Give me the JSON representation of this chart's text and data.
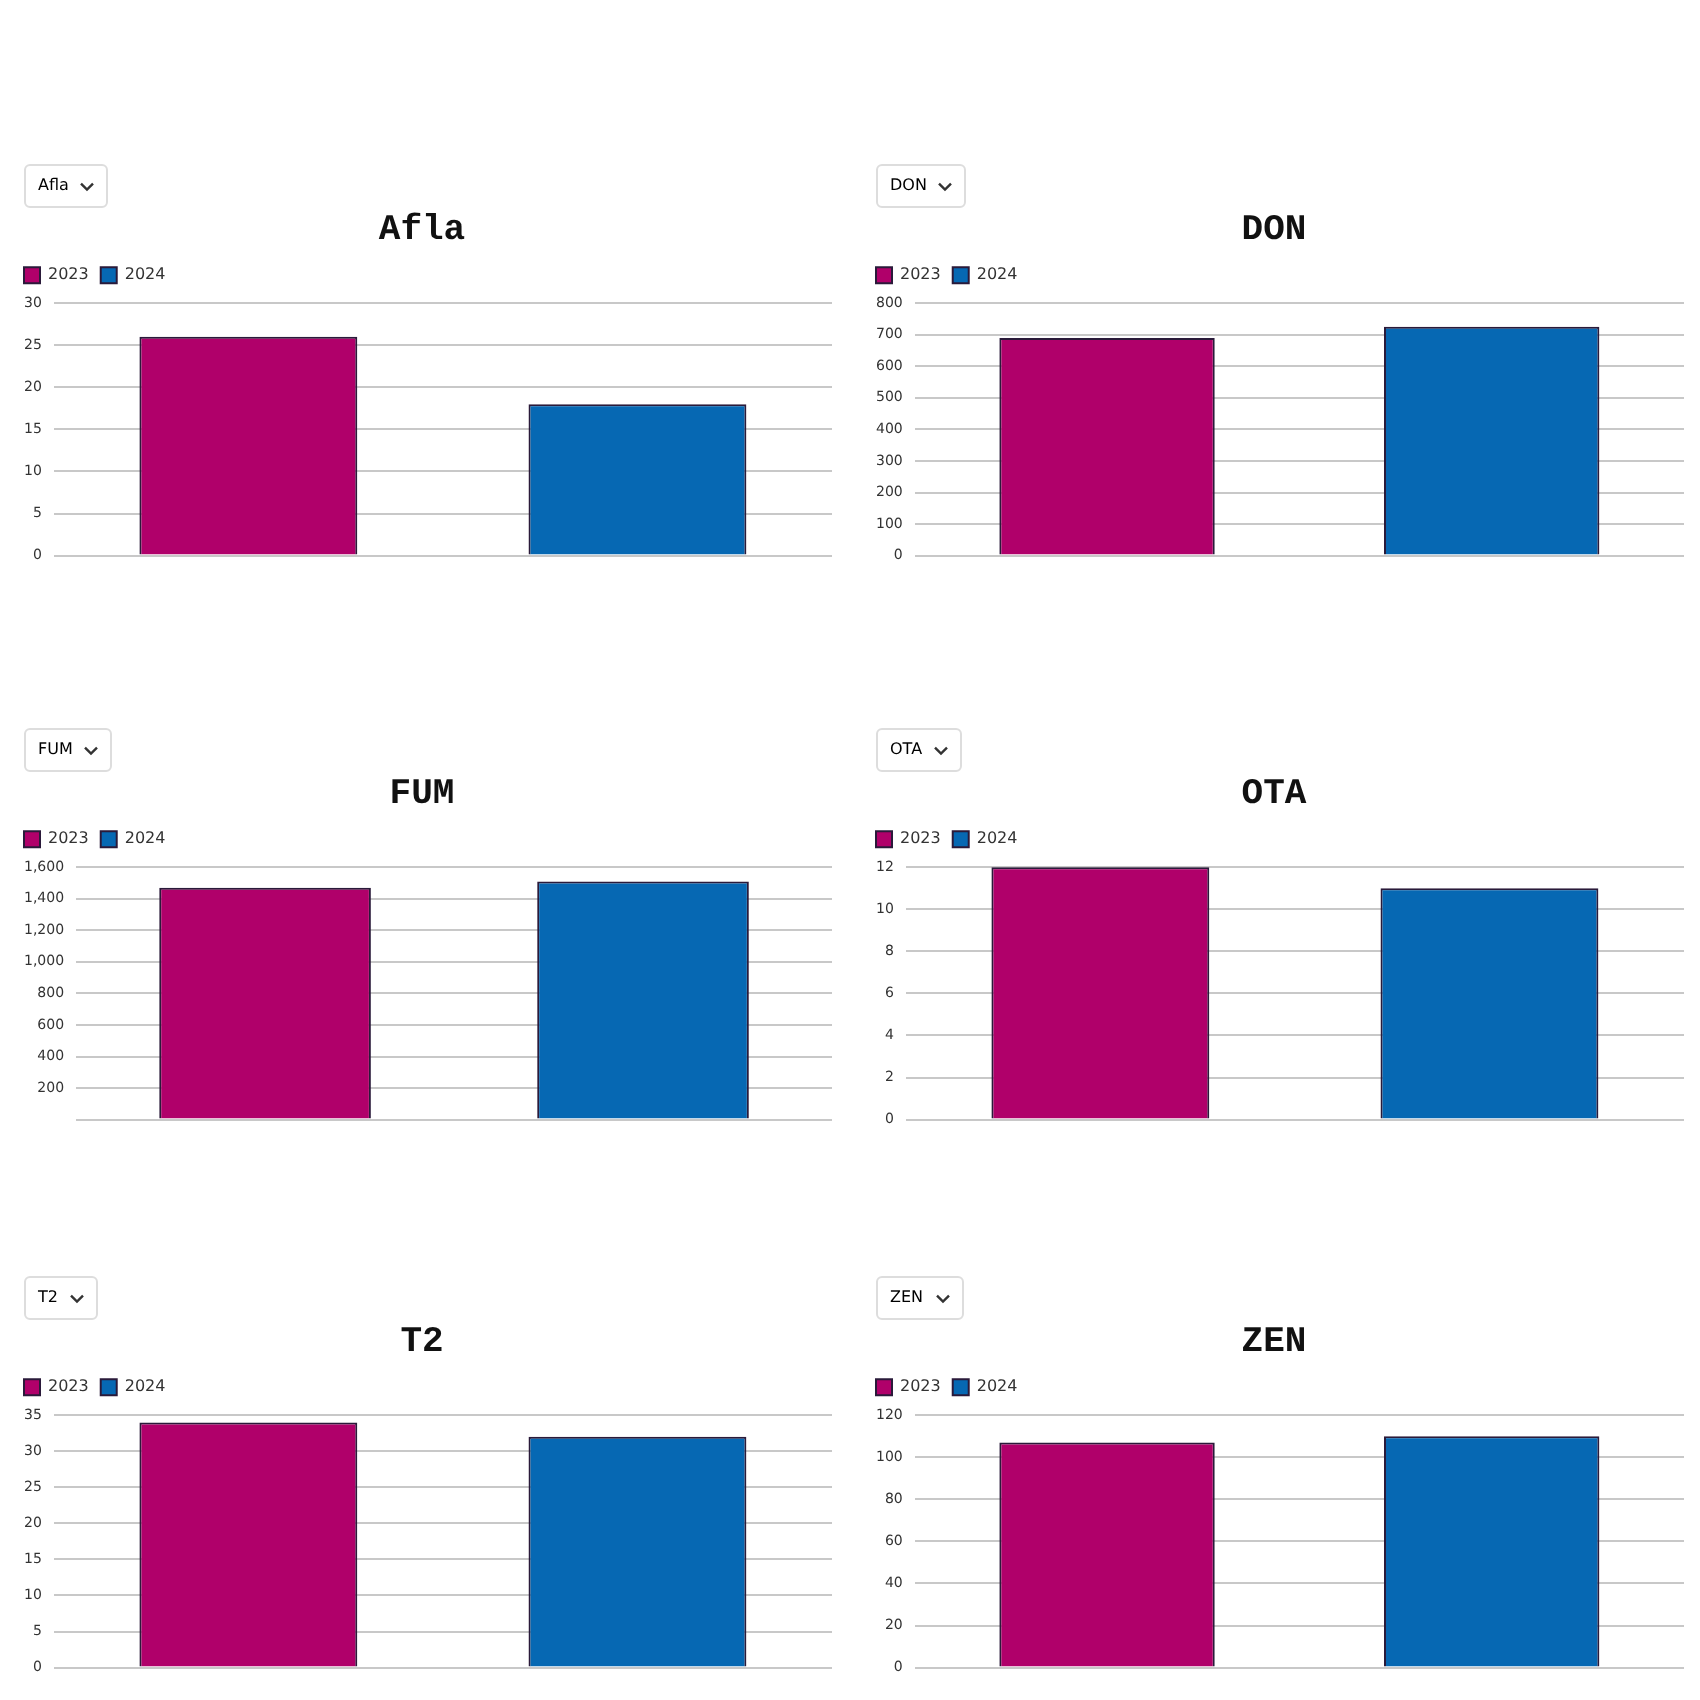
{
  "chart_data": [
    {
      "type": "bar",
      "title": "Afla",
      "categories": [
        null
      ],
      "series": [
        {
          "name": "2023",
          "color": "#b0006a",
          "values": [
            26
          ]
        },
        {
          "name": "2024",
          "color": "#0668b3",
          "values": [
            18
          ]
        }
      ],
      "ylim": [
        0,
        30
      ],
      "yticks": [
        0,
        5,
        10,
        15,
        20,
        25,
        30
      ],
      "grid": "y",
      "legend": "top left"
    },
    {
      "type": "bar",
      "title": "DON",
      "categories": [
        null
      ],
      "series": [
        {
          "name": "2023",
          "color": "#b0006a",
          "values": [
            690
          ]
        },
        {
          "name": "2024",
          "color": "#0668b3",
          "values": [
            725
          ]
        }
      ],
      "ylim": [
        0,
        800
      ],
      "yticks": [
        0,
        100,
        200,
        300,
        400,
        500,
        600,
        700,
        800
      ],
      "grid": "y",
      "legend": "top left"
    },
    {
      "type": "bar",
      "title": "FUM",
      "categories": [
        null
      ],
      "series": [
        {
          "name": "2023",
          "color": "#b0006a",
          "values": [
            1470
          ]
        },
        {
          "name": "2024",
          "color": "#0668b3",
          "values": [
            1510
          ]
        }
      ],
      "ylim": [
        0,
        1600
      ],
      "yticks": [
        {
          "value": 0,
          "label": null
        },
        {
          "value": 200,
          "label": "200"
        },
        {
          "value": 400,
          "label": "400"
        },
        {
          "value": 600,
          "label": "600"
        },
        {
          "value": 800,
          "label": "800"
        },
        {
          "value": 1000,
          "label": "1,000"
        },
        {
          "value": 1200,
          "label": "1,200"
        },
        {
          "value": 1400,
          "label": "1,400"
        },
        {
          "value": 1600,
          "label": "1,600"
        }
      ],
      "grid": "y",
      "legend": "top left"
    },
    {
      "type": "bar",
      "title": "OTA",
      "categories": [
        null
      ],
      "series": [
        {
          "name": "2023",
          "color": "#b0006a",
          "values": [
            12
          ]
        },
        {
          "name": "2024",
          "color": "#0668b3",
          "values": [
            11
          ]
        }
      ],
      "ylim": [
        0,
        12
      ],
      "yticks": [
        0,
        2,
        4,
        6,
        8,
        10,
        12
      ],
      "grid": "y",
      "legend": "top left"
    },
    {
      "type": "bar",
      "title": "T2",
      "categories": [
        null
      ],
      "series": [
        {
          "name": "2023",
          "color": "#b0006a",
          "values": [
            34
          ]
        },
        {
          "name": "2024",
          "color": "#0668b3",
          "values": [
            32
          ]
        }
      ],
      "ylim": [
        0,
        35
      ],
      "yticks": [
        0,
        5,
        10,
        15,
        20,
        25,
        30,
        35
      ],
      "grid": "y",
      "legend": "top left"
    },
    {
      "type": "bar",
      "title": "ZEN",
      "categories": [
        null
      ],
      "series": [
        {
          "name": "2023",
          "color": "#b0006a",
          "values": [
            107
          ]
        },
        {
          "name": "2024",
          "color": "#0668b3",
          "values": [
            110
          ]
        }
      ],
      "ylim": [
        0,
        120
      ],
      "yticks": [
        0,
        20,
        40,
        60,
        80,
        100,
        120
      ],
      "grid": "y",
      "legend": "top left"
    }
  ]
}
